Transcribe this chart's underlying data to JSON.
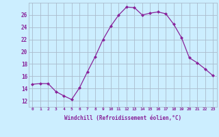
{
  "x": [
    0,
    1,
    2,
    3,
    4,
    5,
    6,
    7,
    8,
    9,
    10,
    11,
    12,
    13,
    14,
    15,
    16,
    17,
    18,
    19,
    20,
    21,
    22,
    23
  ],
  "y": [
    14.7,
    14.8,
    14.8,
    13.5,
    12.8,
    12.2,
    14.1,
    16.7,
    19.2,
    22.0,
    24.2,
    26.0,
    27.3,
    27.2,
    26.0,
    26.3,
    26.5,
    26.2,
    24.5,
    22.3,
    19.0,
    18.2,
    17.2,
    16.1
  ],
  "line_color": "#882299",
  "marker": "D",
  "marker_size": 2,
  "bg_color": "#cceeff",
  "grid_color": "#aabbcc",
  "xlabel": "Windchill (Refroidissement éolien,°C)",
  "xlabel_color": "#882299",
  "tick_color": "#882299",
  "ylim": [
    11,
    28
  ],
  "yticks": [
    12,
    14,
    16,
    18,
    20,
    22,
    24,
    26
  ],
  "xticks": [
    0,
    1,
    2,
    3,
    4,
    5,
    6,
    7,
    8,
    9,
    10,
    11,
    12,
    13,
    14,
    15,
    16,
    17,
    18,
    19,
    20,
    21,
    22,
    23
  ]
}
